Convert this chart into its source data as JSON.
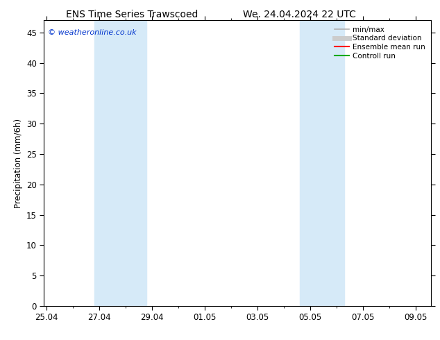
{
  "title_left": "ENS Time Series Trawscoed",
  "title_right": "We. 24.04.2024 22 UTC",
  "ylabel": "Precipitation (mm/6h)",
  "copyright": "© weatheronline.co.uk",
  "ylim": [
    0,
    47
  ],
  "yticks": [
    0,
    5,
    10,
    15,
    20,
    25,
    30,
    35,
    40,
    45
  ],
  "xtick_labels": [
    "25.04",
    "27.04",
    "29.04",
    "01.05",
    "03.05",
    "05.05",
    "07.05",
    "09.05"
  ],
  "xtick_positions": [
    0,
    2,
    4,
    6,
    8,
    10,
    12,
    14
  ],
  "xmin": -0.1,
  "xmax": 14.6,
  "shade_bands": [
    {
      "xstart": 1.8,
      "xend": 3.8,
      "color": "#d6eaf8"
    },
    {
      "xstart": 9.6,
      "xend": 11.3,
      "color": "#d6eaf8"
    }
  ],
  "legend_items": [
    {
      "label": "min/max",
      "color": "#b0b0b0",
      "lw": 1.2,
      "style": "solid"
    },
    {
      "label": "Standard deviation",
      "color": "#cccccc",
      "lw": 5,
      "style": "solid"
    },
    {
      "label": "Ensemble mean run",
      "color": "#ff0000",
      "lw": 1.5,
      "style": "solid"
    },
    {
      "label": "Controll run",
      "color": "#00aa00",
      "lw": 1.5,
      "style": "solid"
    }
  ],
  "bg_color": "#ffffff",
  "plot_bg_color": "#ffffff",
  "title_fontsize": 10,
  "axis_fontsize": 8.5,
  "copyright_fontsize": 8,
  "legend_fontsize": 7.5
}
